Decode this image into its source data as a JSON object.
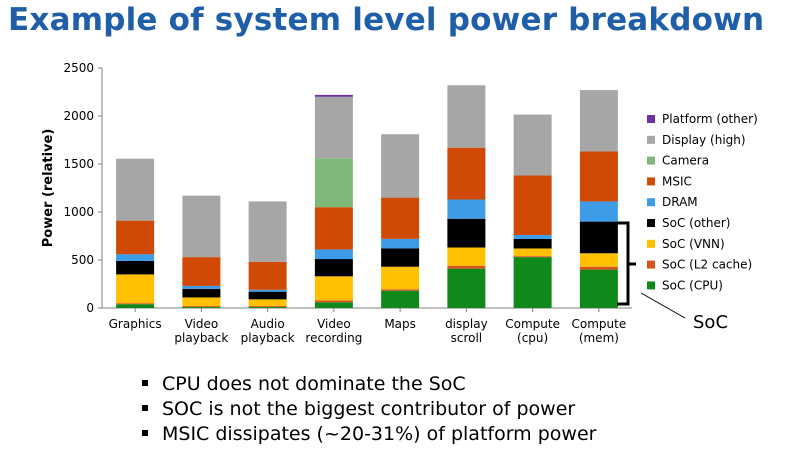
{
  "title": "Example of system level power breakdown",
  "chart_data": {
    "type": "bar",
    "stacked": true,
    "title": "",
    "xlabel": "",
    "ylabel": "Power (relative)",
    "ylim": [
      0,
      2500
    ],
    "yticks": [
      0,
      500,
      1000,
      1500,
      2000,
      2500
    ],
    "categories": [
      [
        "Graphics"
      ],
      [
        "Video",
        "playback"
      ],
      [
        "Audio",
        "playback"
      ],
      [
        "Video",
        "recording"
      ],
      [
        "Maps"
      ],
      [
        "display",
        "scroll"
      ],
      [
        "Compute",
        "(cpu)"
      ],
      [
        "Compute",
        "(mem)"
      ]
    ],
    "series": [
      {
        "name": "SoC (CPU)",
        "color": "#10891b",
        "values": [
          40,
          10,
          10,
          60,
          180,
          410,
          530,
          400
        ]
      },
      {
        "name": "SoC (L2 cache)",
        "color": "#d9531e",
        "values": [
          10,
          10,
          10,
          20,
          15,
          30,
          10,
          30
        ]
      },
      {
        "name": "SoC (VNN)",
        "color": "#ffc000",
        "values": [
          300,
          90,
          70,
          250,
          235,
          190,
          80,
          140
        ]
      },
      {
        "name": "SoC (other)",
        "color": "#000000",
        "values": [
          140,
          90,
          80,
          180,
          190,
          300,
          100,
          330
        ]
      },
      {
        "name": "DRAM",
        "color": "#3d9ce8",
        "values": [
          70,
          30,
          20,
          100,
          100,
          200,
          40,
          210
        ]
      },
      {
        "name": "MSIC",
        "color": "#d04a06",
        "values": [
          350,
          300,
          290,
          440,
          430,
          540,
          620,
          520
        ]
      },
      {
        "name": "Camera",
        "color": "#7fb97a",
        "values": [
          0,
          0,
          0,
          510,
          0,
          0,
          0,
          0
        ]
      },
      {
        "name": "Display (high)",
        "color": "#a6a6a6",
        "values": [
          645,
          640,
          630,
          640,
          660,
          650,
          635,
          640
        ]
      },
      {
        "name": "Platform (other)",
        "color": "#7030a0",
        "values": [
          0,
          0,
          0,
          20,
          0,
          0,
          0,
          0
        ]
      }
    ],
    "legend_order": [
      "Platform (other)",
      "Display (high)",
      "Camera",
      "MSIC",
      "DRAM",
      "SoC (other)",
      "SoC (VNN)",
      "SoC (L2 cache)",
      "SoC (CPU)"
    ],
    "legend_position": "right",
    "annotation": "SoC",
    "grid": false
  },
  "bullets": [
    "CPU does not dominate the SoC",
    "SOC is not the biggest contributor of power",
    "MSIC dissipates (~20-31%) of platform power"
  ]
}
